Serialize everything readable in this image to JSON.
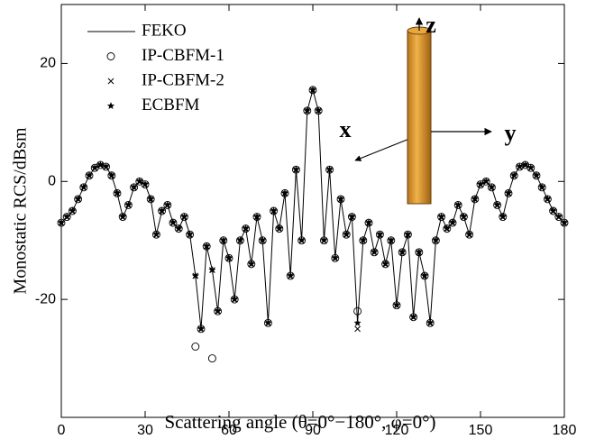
{
  "chart_data": {
    "type": "line",
    "xlabel": "Scattering angle (θ=0°−180°, φ=0°)",
    "ylabel": "Monostatic RCS/dBsm",
    "xlim": [
      0,
      180
    ],
    "xticks": [
      0,
      30,
      60,
      90,
      120,
      150,
      180
    ],
    "ylim": [
      -40,
      30
    ],
    "yticks": [
      -20,
      0,
      20
    ],
    "legend": "upper left",
    "inset_labels": [
      "x",
      "y",
      "z"
    ],
    "x": [
      0,
      2,
      4,
      6,
      8,
      10,
      12,
      14,
      16,
      18,
      20,
      22,
      24,
      26,
      28,
      30,
      32,
      34,
      36,
      38,
      40,
      42,
      44,
      46,
      48,
      50,
      52,
      54,
      56,
      58,
      60,
      62,
      64,
      66,
      68,
      70,
      72,
      74,
      76,
      78,
      80,
      82,
      84,
      86,
      88,
      90,
      92,
      94,
      96,
      98,
      100,
      102,
      104,
      106,
      108,
      110,
      112,
      114,
      116,
      118,
      120,
      122,
      124,
      126,
      128,
      130,
      132,
      134,
      136,
      138,
      140,
      142,
      144,
      146,
      148,
      150,
      152,
      154,
      156,
      158,
      160,
      162,
      164,
      166,
      168,
      170,
      172,
      174,
      176,
      178,
      180
    ],
    "series": [
      {
        "name": "FEKO",
        "color": "#000000",
        "marker": "none",
        "values": [
          -7,
          -6,
          -5,
          -3,
          -1,
          1,
          2.3,
          2.8,
          2.5,
          1,
          -2,
          -6,
          -4,
          -1,
          0,
          -0.5,
          -3,
          -9,
          -5,
          -4,
          -7,
          -8,
          -6,
          -9,
          -16,
          -25,
          -11,
          -15,
          -22,
          -10,
          -13,
          -20,
          -10,
          -8,
          -14,
          -6,
          -10,
          -24,
          -5,
          -8,
          -2,
          -16,
          2,
          -10,
          12,
          15.5,
          12,
          -10,
          2,
          -13,
          -3,
          -9,
          -6,
          -24,
          -10,
          -7,
          -12,
          -9,
          -14,
          -10,
          -21,
          -12,
          -9,
          -23,
          -12,
          -16,
          -24,
          -10,
          -6,
          -8,
          -7,
          -4,
          -6,
          -9,
          -3,
          -0.5,
          0,
          -1,
          -4,
          -6,
          -2,
          1,
          2.5,
          2.8,
          2.3,
          1,
          -1,
          -3,
          -5,
          -6,
          -7
        ]
      },
      {
        "name": "IP-CBFM-1",
        "color": "#000000",
        "marker": "o",
        "values": [
          -7,
          -6,
          -5,
          -3,
          -1,
          1,
          2.3,
          2.8,
          2.5,
          1,
          -2,
          -6,
          -4,
          -1,
          0,
          -0.5,
          -3,
          -9,
          -5,
          -4,
          -7,
          -8,
          -6,
          -9,
          -28,
          -25,
          -11,
          -30,
          -22,
          -10,
          -13,
          -20,
          -10,
          -8,
          -14,
          -6,
          -10,
          -24,
          -5,
          -8,
          -2,
          -16,
          2,
          -10,
          12,
          15.5,
          12,
          -10,
          2,
          -13,
          -3,
          -9,
          -6,
          -22,
          -10,
          -7,
          -12,
          -9,
          -14,
          -10,
          -21,
          -12,
          -9,
          -23,
          -12,
          -16,
          -24,
          -10,
          -6,
          -8,
          -7,
          -4,
          -6,
          -9,
          -3,
          -0.5,
          0,
          -1,
          -4,
          -6,
          -2,
          1,
          2.5,
          2.8,
          2.3,
          1,
          -1,
          -3,
          -5,
          -6,
          -7
        ]
      },
      {
        "name": "IP-CBFM-2",
        "color": "#000000",
        "marker": "x",
        "values": [
          -7,
          -6,
          -5,
          -3,
          -1,
          1,
          2.3,
          2.8,
          2.5,
          1,
          -2,
          -6,
          -4,
          -1,
          0,
          -0.5,
          -3,
          -9,
          -5,
          -4,
          -7,
          -8,
          -6,
          -9,
          -16,
          -25,
          -11,
          -15,
          -22,
          -10,
          -13,
          -20,
          -10,
          -8,
          -14,
          -6,
          -10,
          -24,
          -5,
          -8,
          -2,
          -16,
          2,
          -10,
          12,
          15.5,
          12,
          -10,
          2,
          -13,
          -3,
          -9,
          -6,
          -25,
          -10,
          -7,
          -12,
          -9,
          -14,
          -10,
          -21,
          -12,
          -9,
          -23,
          -12,
          -16,
          -24,
          -10,
          -6,
          -8,
          -7,
          -4,
          -6,
          -9,
          -3,
          -0.5,
          0,
          -1,
          -4,
          -6,
          -2,
          1,
          2.5,
          2.8,
          2.3,
          1,
          -1,
          -3,
          -5,
          -6,
          -7
        ]
      },
      {
        "name": "ECBFM",
        "color": "#000000",
        "marker": "*",
        "values": [
          -7,
          -6,
          -5,
          -3,
          -1,
          1,
          2.3,
          2.8,
          2.5,
          1,
          -2,
          -6,
          -4,
          -1,
          0,
          -0.5,
          -3,
          -9,
          -5,
          -4,
          -7,
          -8,
          -6,
          -9,
          -16,
          -25,
          -11,
          -15,
          -22,
          -10,
          -13,
          -20,
          -10,
          -8,
          -14,
          -6,
          -10,
          -24,
          -5,
          -8,
          -2,
          -16,
          2,
          -10,
          12,
          15.5,
          12,
          -10,
          2,
          -13,
          -3,
          -9,
          -6,
          -24,
          -10,
          -7,
          -12,
          -9,
          -14,
          -10,
          -21,
          -12,
          -9,
          -23,
          -12,
          -16,
          -24,
          -10,
          -6,
          -8,
          -7,
          -4,
          -6,
          -9,
          -3,
          -0.5,
          0,
          -1,
          -4,
          -6,
          -2,
          1,
          2.5,
          2.8,
          2.3,
          1,
          -1,
          -3,
          -5,
          -6,
          -7
        ]
      }
    ]
  }
}
